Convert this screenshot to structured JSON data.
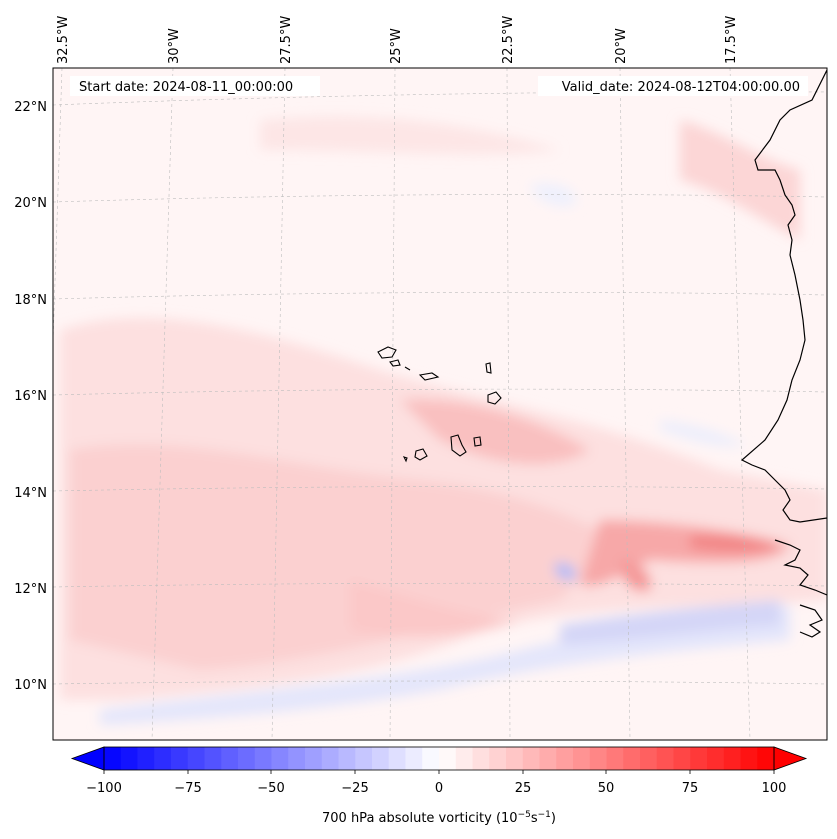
{
  "header": {
    "start_date": "Start date: 2024-08-11_00:00:00",
    "valid_date": "Valid_date: 2024-08-12T04:00:00.00"
  },
  "map": {
    "lon_labels": [
      "32.5°W",
      "30°W",
      "27.5°W",
      "25°W",
      "22.5°W",
      "20°W",
      "17.5°W"
    ],
    "lat_labels": [
      "22°N",
      "20°N",
      "18°N",
      "16°N",
      "14°N",
      "12°N",
      "10°N"
    ],
    "gridlines": true,
    "field": "700 hPa absolute vorticity"
  },
  "colorbar": {
    "ticks": [
      "−100",
      "−75",
      "−50",
      "−25",
      "0",
      "25",
      "50",
      "75",
      "100"
    ],
    "title_prefix": "700 hPa absolute vorticity (10",
    "title_exp1": "−5",
    "title_mid": "s",
    "title_exp2": "−1",
    "title_suffix": ")",
    "min": -100,
    "max": 100,
    "step": 5,
    "colormap": "bwr"
  }
}
